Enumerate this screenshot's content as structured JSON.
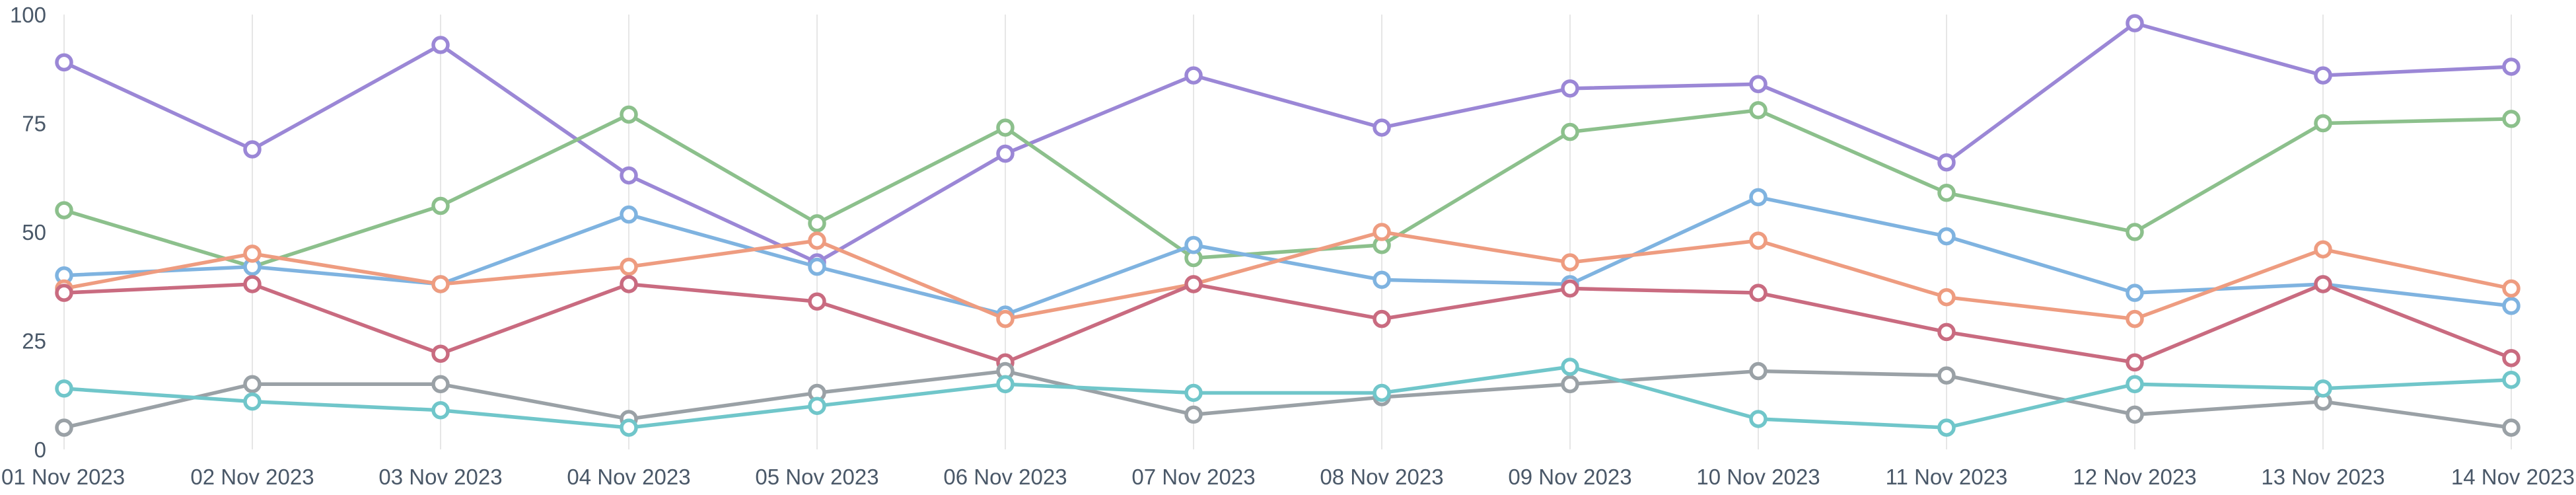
{
  "chart_data": {
    "type": "line",
    "title": "",
    "xlabel": "",
    "ylabel": "",
    "ylim": [
      0,
      100
    ],
    "yticks": [
      0,
      25,
      50,
      75,
      100
    ],
    "grid": "vertical",
    "legend": "none",
    "categories": [
      "01 Nov 2023",
      "02 Nov 2023",
      "03 Nov 2023",
      "04 Nov 2023",
      "05 Nov 2023",
      "06 Nov 2023",
      "07 Nov 2023",
      "08 Nov 2023",
      "09 Nov 2023",
      "10 Nov 2023",
      "11 Nov 2023",
      "12 Nov 2023",
      "13 Nov 2023",
      "14 Nov 2023"
    ],
    "series": [
      {
        "color": "#9b87d6",
        "values": [
          89,
          69,
          93,
          63,
          43,
          68,
          86,
          74,
          83,
          84,
          66,
          98,
          86,
          88
        ]
      },
      {
        "color": "#8cc08c",
        "values": [
          55,
          42,
          56,
          77,
          52,
          74,
          44,
          47,
          73,
          78,
          59,
          50,
          75,
          76
        ]
      },
      {
        "color": "#7fb3e0",
        "values": [
          40,
          42,
          38,
          54,
          42,
          31,
          47,
          39,
          38,
          58,
          49,
          36,
          38,
          33
        ]
      },
      {
        "color": "#ee9c80",
        "values": [
          37,
          45,
          38,
          42,
          48,
          30,
          38,
          50,
          43,
          48,
          35,
          30,
          46,
          37
        ]
      },
      {
        "color": "#c96b80",
        "values": [
          36,
          38,
          22,
          38,
          34,
          20,
          38,
          30,
          37,
          36,
          27,
          20,
          38,
          21
        ]
      },
      {
        "color": "#9aa1a6",
        "values": [
          5,
          15,
          15,
          7,
          13,
          18,
          8,
          12,
          15,
          18,
          17,
          8,
          11,
          5
        ]
      },
      {
        "color": "#70c6ca",
        "values": [
          14,
          11,
          9,
          5,
          10,
          15,
          13,
          13,
          19,
          7,
          5,
          15,
          14,
          16
        ]
      }
    ]
  }
}
